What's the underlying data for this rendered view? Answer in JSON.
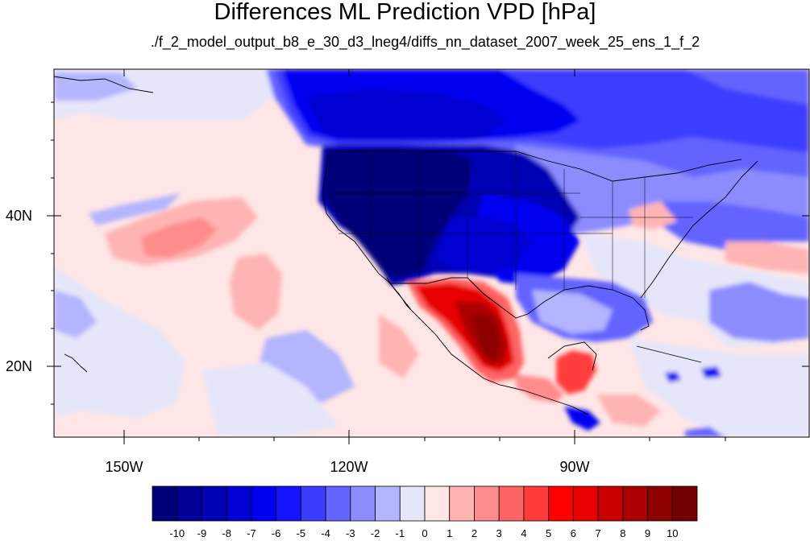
{
  "title": "Differences ML Prediction VPD [hPa]",
  "subtitle": "./f_2_model_output_b8_e_30_d3_lneg4/diffs_nn_dataset_2007_week_25_ens_1_f_2",
  "lat_labels": [
    "40N",
    "20N"
  ],
  "lon_labels": [
    "150W",
    "120W",
    "90W"
  ],
  "colorbar": {
    "labels": [
      "-10",
      "-9",
      "-8",
      "-7",
      "-6",
      "-5",
      "-4",
      "-3",
      "-2",
      "-1",
      "0",
      "1",
      "2",
      "3",
      "4",
      "5",
      "6",
      "7",
      "8",
      "9",
      "10"
    ],
    "colors": [
      "#000078",
      "#000096",
      "#0000b4",
      "#0000d2",
      "#0000f0",
      "#1414ff",
      "#3c3cff",
      "#6464ff",
      "#8c8cff",
      "#b4b4ff",
      "#e6e6fa",
      "#ffe6e6",
      "#ffb4b4",
      "#ff8c8c",
      "#ff6464",
      "#ff3c3c",
      "#ff0000",
      "#e60000",
      "#c80000",
      "#aa0000",
      "#8c0000",
      "#6e0000"
    ]
  },
  "map": {
    "extent": {
      "lon_min": -160,
      "lon_max": -60,
      "lat_min": 10,
      "lat_max": 60
    },
    "background_color": "#ffe6e6",
    "regions": [
      {
        "name": "northwest-dark-blue",
        "value": -10
      },
      {
        "name": "north-canada-blue",
        "value": -6
      },
      {
        "name": "east-blue",
        "value": -4
      },
      {
        "name": "mexico-red",
        "value": 7
      },
      {
        "name": "central-america-red",
        "value": 5
      },
      {
        "name": "pacific-pink",
        "value": 2
      }
    ]
  }
}
